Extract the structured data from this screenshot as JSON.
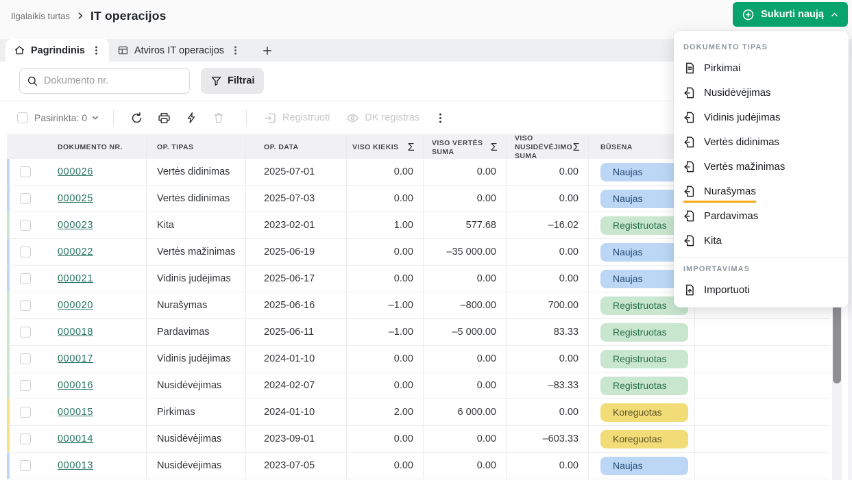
{
  "header": {
    "breadcrumb": {
      "parent": "Ilgalaikis turtas",
      "current": "IT operacijos"
    },
    "create_button": "Sukurti naują"
  },
  "tabs": {
    "main": "Pagrindinis",
    "secondary": "Atviros IT operacijos"
  },
  "filters": {
    "search_placeholder": "Dokumento nr.",
    "filters_button": "Filtrai"
  },
  "toolbar": {
    "selected": "Pasirinkta: 0",
    "register": "Registruoti",
    "dk_register": "DK registras"
  },
  "table": {
    "sum_symbol": "Σ",
    "columns": [
      "DOKUMENTO NR.",
      "OP. TIPAS",
      "OP. DATA",
      "VISO KIEKIS",
      "VISO VERTĖS SUMA",
      "VISO NUSIDĖVĖJIMO SUMA",
      "BŪSENA"
    ],
    "rows": [
      {
        "doc": "000026",
        "type": "Vertės didinimas",
        "date": "2025-07-01",
        "qty": "0.00",
        "value": "0.00",
        "depreciation": "0.00",
        "status": "Naujas",
        "status_color": "blue"
      },
      {
        "doc": "000025",
        "type": "Vertės didinimas",
        "date": "2025-07-03",
        "qty": "0.00",
        "value": "0.00",
        "depreciation": "0.00",
        "status": "Naujas",
        "status_color": "blue"
      },
      {
        "doc": "000023",
        "type": "Kita",
        "date": "2023-02-01",
        "qty": "1.00",
        "value": "577.68",
        "depreciation": "–16.02",
        "status": "Registruotas",
        "status_color": "green"
      },
      {
        "doc": "000022",
        "type": "Vertės mažinimas",
        "date": "2025-06-19",
        "qty": "0.00",
        "value": "–35 000.00",
        "depreciation": "0.00",
        "status": "Naujas",
        "status_color": "blue"
      },
      {
        "doc": "000021",
        "type": "Vidinis judėjimas",
        "date": "2025-06-17",
        "qty": "0.00",
        "value": "0.00",
        "depreciation": "0.00",
        "status": "Naujas",
        "status_color": "blue"
      },
      {
        "doc": "000020",
        "type": "Nurašymas",
        "date": "2025-06-16",
        "qty": "–1.00",
        "value": "–800.00",
        "depreciation": "700.00",
        "status": "Registruotas",
        "status_color": "green"
      },
      {
        "doc": "000018",
        "type": "Pardavimas",
        "date": "2025-06-11",
        "qty": "–1.00",
        "value": "–5 000.00",
        "depreciation": "83.33",
        "status": "Registruotas",
        "status_color": "green"
      },
      {
        "doc": "000017",
        "type": "Vidinis judėjimas",
        "date": "2024-01-10",
        "qty": "0.00",
        "value": "0.00",
        "depreciation": "0.00",
        "status": "Registruotas",
        "status_color": "green"
      },
      {
        "doc": "000016",
        "type": "Nusidėvėjimas",
        "date": "2024-02-07",
        "qty": "0.00",
        "value": "0.00",
        "depreciation": "–83.33",
        "status": "Registruotas",
        "status_color": "green"
      },
      {
        "doc": "000015",
        "type": "Pirkimas",
        "date": "2024-01-10",
        "qty": "2.00",
        "value": "6 000.00",
        "depreciation": "0.00",
        "status": "Koreguotas",
        "status_color": "yellow"
      },
      {
        "doc": "000014",
        "type": "Nusidėvėjimas",
        "date": "2023-09-01",
        "qty": "0.00",
        "value": "0.00",
        "depreciation": "–603.33",
        "status": "Koreguotas",
        "status_color": "yellow"
      },
      {
        "doc": "000013",
        "type": "Nusidėvėjimas",
        "date": "2023-07-05",
        "qty": "0.00",
        "value": "0.00",
        "depreciation": "0.00",
        "status": "Naujas",
        "status_color": "blue"
      }
    ]
  },
  "dropdown": {
    "section_documents": "DOKUMENTO TIPAS",
    "items": [
      {
        "label": "Pirkimai",
        "icon": "doc-lines",
        "highlighted": false
      },
      {
        "label": "Nusidėvėjimas",
        "icon": "doc-export",
        "highlighted": false
      },
      {
        "label": "Vidinis judėjimas",
        "icon": "doc-export",
        "highlighted": false
      },
      {
        "label": "Vertės didinimas",
        "icon": "doc-export",
        "highlighted": false
      },
      {
        "label": "Vertės mažinimas",
        "icon": "doc-export",
        "highlighted": false
      },
      {
        "label": "Nurašymas",
        "icon": "doc-export",
        "highlighted": true
      },
      {
        "label": "Pardavimas",
        "icon": "doc-export",
        "highlighted": false
      },
      {
        "label": "Kita",
        "icon": "doc-export",
        "highlighted": false
      }
    ],
    "section_import": "IMPORTAVIMAS",
    "import_item": {
      "label": "Importuoti",
      "icon": "doc-import"
    }
  },
  "colors": {
    "accent_green": "#09a36e",
    "link_green": "#26735f",
    "highlight_orange": "#f6a90b",
    "status_new_bg": "#bcd7f6",
    "status_new_text": "#274a74",
    "status_registered_bg": "#c9e6cf",
    "status_registered_text": "#2a6f4a",
    "status_adjusted_bg": "#f2dc78",
    "status_adjusted_text": "#5c5426"
  }
}
